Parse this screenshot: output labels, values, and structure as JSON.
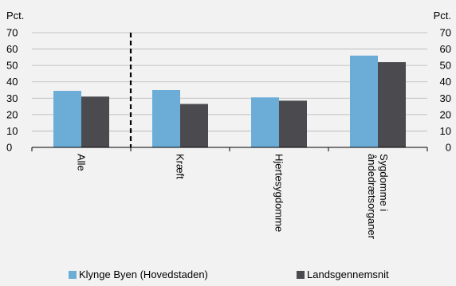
{
  "chart_data": {
    "type": "bar",
    "ylabel_left": "Pct.",
    "ylabel_right": "Pct.",
    "ylim": [
      0,
      70
    ],
    "yticks": [
      0,
      10,
      20,
      30,
      40,
      50,
      60,
      70
    ],
    "grid": true,
    "categories": [
      [
        "Alle"
      ],
      [
        "Kræft"
      ],
      [
        "Hjertesygdomme"
      ],
      [
        "Sygdomme i",
        "åndedrætsorganer"
      ]
    ],
    "series": [
      {
        "name": "Klynge Byen (Hovedstaden)",
        "color": "#6badd7",
        "values": [
          34.5,
          35,
          30.5,
          56
        ]
      },
      {
        "name": "Landsgennemsnit",
        "color": "#4a4a4f",
        "values": [
          31,
          26.5,
          28.5,
          52
        ]
      }
    ],
    "divider_after_category": 0,
    "legend_position": "bottom"
  }
}
